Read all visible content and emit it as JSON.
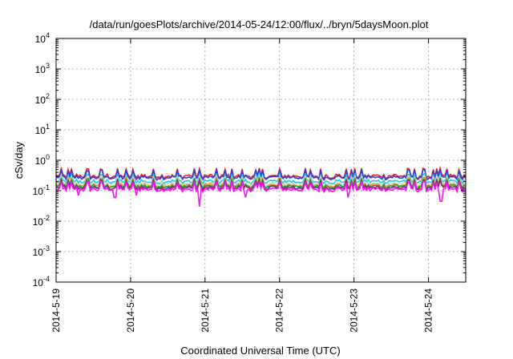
{
  "chart_data": {
    "type": "line",
    "title": "/data/run/goesPlots/archive/2014-05-24/12:00/flux/../bryn/5daysMoon.plot",
    "xlabel": "Coordinated Universal Time (UTC)",
    "ylabel": "cSv/day",
    "yscale": "log",
    "ylim": [
      0.0001,
      10000
    ],
    "xlim": [
      "2014-05-19T00:00",
      "2014-05-24T12:00"
    ],
    "grid": true,
    "y_tick_labels": [
      {
        "base": "10",
        "exp": "-4"
      },
      {
        "base": "10",
        "exp": "-3"
      },
      {
        "base": "10",
        "exp": "-2"
      },
      {
        "base": "10",
        "exp": "-1"
      },
      {
        "base": "10",
        "exp": "0"
      },
      {
        "base": "10",
        "exp": "1"
      },
      {
        "base": "10",
        "exp": "2"
      },
      {
        "base": "10",
        "exp": "3"
      },
      {
        "base": "10",
        "exp": "4"
      }
    ],
    "x_tick_labels": [
      "2014-5-19",
      "2014-5-20",
      "2014-5-21",
      "2014-5-22",
      "2014-5-23",
      "2014-5-24"
    ],
    "x_ticks": [
      "2014-05-19T00:00",
      "2014-05-20T00:00",
      "2014-05-21T00:00",
      "2014-05-22T00:00",
      "2014-05-23T00:00",
      "2014-05-24T00:00"
    ],
    "series": [
      {
        "color": "#e8202a",
        "baseline": 0.3,
        "dips": []
      },
      {
        "color": "#2a3fe0",
        "baseline": 0.27,
        "dips": []
      },
      {
        "color": "#20c8d8",
        "baseline": 0.2,
        "dips": []
      },
      {
        "color": "#d8d8d8",
        "baseline": 0.17,
        "dips": []
      },
      {
        "color": "#e8a020",
        "baseline": 0.15,
        "dips": []
      },
      {
        "color": "#20a040",
        "baseline": 0.14,
        "dips": []
      },
      {
        "color": "#8a2a6a",
        "baseline": 0.125,
        "dips": []
      },
      {
        "color": "#ff10ff",
        "baseline": 0.11,
        "dips": [
          {
            "x": "2014-05-19T07:00",
            "y": 0.07
          },
          {
            "x": "2014-05-19T19:00",
            "y": 0.06
          },
          {
            "x": "2014-05-20T02:00",
            "y": 0.07
          },
          {
            "x": "2014-05-20T22:00",
            "y": 0.03
          },
          {
            "x": "2014-05-21T13:00",
            "y": 0.06
          },
          {
            "x": "2014-05-22T22:00",
            "y": 0.06
          },
          {
            "x": "2014-05-24T04:00",
            "y": 0.045
          }
        ]
      }
    ]
  }
}
